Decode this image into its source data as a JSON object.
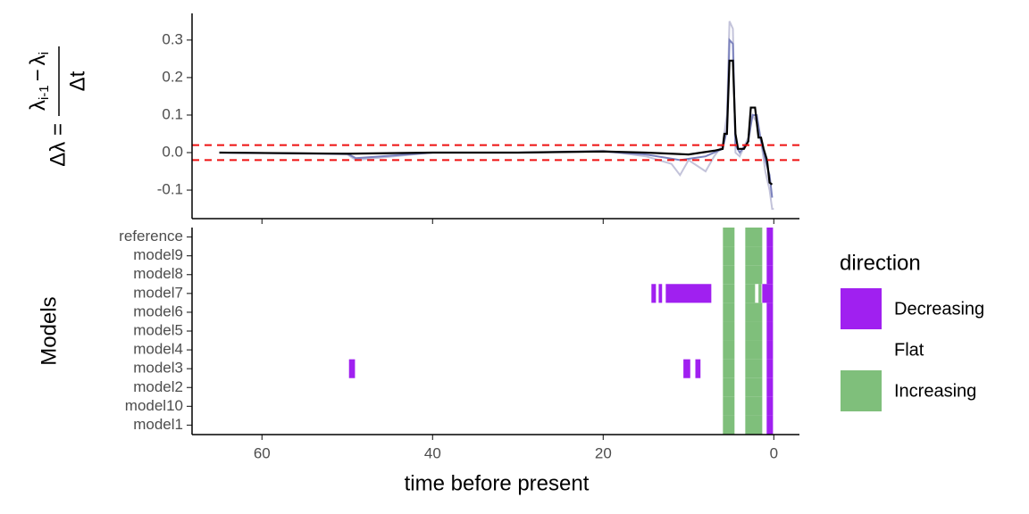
{
  "chart_data": [
    {
      "type": "line",
      "ylabel": {
        "lhs": "Δλ =",
        "num_a": "λ",
        "num_a_sub": "i-1",
        "minus": "−",
        "num_b": "λ",
        "num_b_sub": "i",
        "den": "Δt"
      },
      "xlim": [
        68.2,
        -3.0
      ],
      "xticks": [
        60,
        40,
        20,
        0
      ],
      "ylim": [
        -0.176,
        0.371
      ],
      "yticks": [
        -0.1,
        0.0,
        0.1,
        0.2,
        0.3
      ],
      "yticklabels_fixed": 1,
      "hlines": [
        0.02,
        -0.02
      ],
      "hline_color": "#ee1111",
      "series": [
        {
          "color": "#c3c3da",
          "x": [
            65,
            50,
            49,
            40,
            30,
            20,
            15,
            12,
            11,
            10,
            8,
            7,
            6,
            5.5,
            5.2,
            4.8,
            4.5,
            4,
            3,
            2.5,
            2,
            1.5,
            1,
            0.5,
            0.2,
            0
          ],
          "values": [
            0,
            -0.005,
            -0.02,
            0,
            0,
            0.005,
            -0.01,
            -0.03,
            -0.06,
            -0.02,
            -0.05,
            -0.01,
            0.02,
            0.1,
            0.35,
            0.33,
            0.0,
            -0.01,
            0.04,
            0.1,
            0.08,
            0.03,
            -0.05,
            -0.1,
            -0.15,
            -0.15
          ]
        },
        {
          "color": "#7b82bd",
          "x": [
            65,
            50,
            49,
            40,
            30,
            20,
            15,
            11,
            8,
            6,
            5.5,
            5.2,
            4.8,
            4.5,
            4,
            3,
            2.5,
            2,
            1.5,
            1,
            0.5,
            0.2
          ],
          "values": [
            0,
            -0.003,
            -0.015,
            0,
            0,
            0.003,
            -0.005,
            -0.02,
            -0.01,
            0.01,
            0.06,
            0.3,
            0.29,
            0.02,
            0.0,
            0.03,
            0.1,
            0.1,
            0.03,
            -0.02,
            -0.06,
            -0.12
          ]
        },
        {
          "color": "#000000",
          "x": [
            65,
            50,
            40,
            30,
            20,
            15,
            10,
            7,
            6,
            5.8,
            5.5,
            5.2,
            4.8,
            4.5,
            4.2,
            3.5,
            3.0,
            2.7,
            2.2,
            1.8,
            1.5,
            1.2,
            0.8,
            0.5,
            0.2
          ],
          "values": [
            0,
            -0.003,
            0,
            0,
            0.003,
            0,
            -0.005,
            0.005,
            0.01,
            0.05,
            0.05,
            0.245,
            0.245,
            0.05,
            0.01,
            0.01,
            0.03,
            0.12,
            0.12,
            0.04,
            0.04,
            0.01,
            -0.02,
            -0.08,
            -0.085
          ]
        }
      ]
    },
    {
      "type": "tile",
      "xlabel": "time before present",
      "ylabel": "Models",
      "xlim": [
        68.2,
        -3.0
      ],
      "xticks": [
        60,
        40,
        20,
        0
      ],
      "categories": [
        "reference",
        "model9",
        "model8",
        "model7",
        "model6",
        "model5",
        "model4",
        "model3",
        "model2",
        "model10",
        "model1"
      ],
      "legend": {
        "title": "direction",
        "entries": [
          {
            "name": "Decreasing",
            "color": "#a020f0"
          },
          {
            "name": "Flat",
            "color": "#ffffff"
          },
          {
            "name": "Increasing",
            "color": "#7fbf7b"
          }
        ]
      },
      "tiles": [
        {
          "from": 5.97,
          "to": 4.61,
          "direction": "Increasing",
          "rows": [
            "reference",
            "model9",
            "model8",
            "model7",
            "model6",
            "model5",
            "model4",
            "model3",
            "model2",
            "model10",
            "model1"
          ]
        },
        {
          "from": 3.35,
          "to": 1.36,
          "direction": "Increasing",
          "rows": [
            "reference",
            "model9",
            "model8",
            "model6",
            "model5",
            "model4",
            "model3",
            "model2",
            "model10",
            "model1"
          ]
        },
        {
          "from": 3.35,
          "to": 2.2,
          "direction": "Increasing",
          "rows": [
            "model7"
          ]
        },
        {
          "from": 1.8,
          "to": 1.45,
          "direction": "Increasing",
          "rows": [
            "model7"
          ]
        },
        {
          "from": 0.84,
          "to": 0.1,
          "direction": "Decreasing",
          "rows": [
            "reference",
            "model9",
            "model8",
            "model6",
            "model5",
            "model4",
            "model3",
            "model2",
            "model10",
            "model1"
          ]
        },
        {
          "from": 1.36,
          "to": 0.1,
          "direction": "Decreasing",
          "rows": [
            "model7"
          ]
        },
        {
          "from": 14.35,
          "to": 13.82,
          "direction": "Decreasing",
          "rows": [
            "model7"
          ]
        },
        {
          "from": 13.5,
          "to": 13.1,
          "direction": "Decreasing",
          "rows": [
            "model7"
          ]
        },
        {
          "from": 12.67,
          "to": 7.33,
          "direction": "Decreasing",
          "rows": [
            "model7"
          ]
        },
        {
          "from": 49.8,
          "to": 49.1,
          "direction": "Decreasing",
          "rows": [
            "model3"
          ]
        },
        {
          "from": 10.6,
          "to": 9.8,
          "direction": "Decreasing",
          "rows": [
            "model3"
          ]
        },
        {
          "from": 9.2,
          "to": 8.6,
          "direction": "Decreasing",
          "rows": [
            "model3"
          ]
        }
      ]
    }
  ]
}
